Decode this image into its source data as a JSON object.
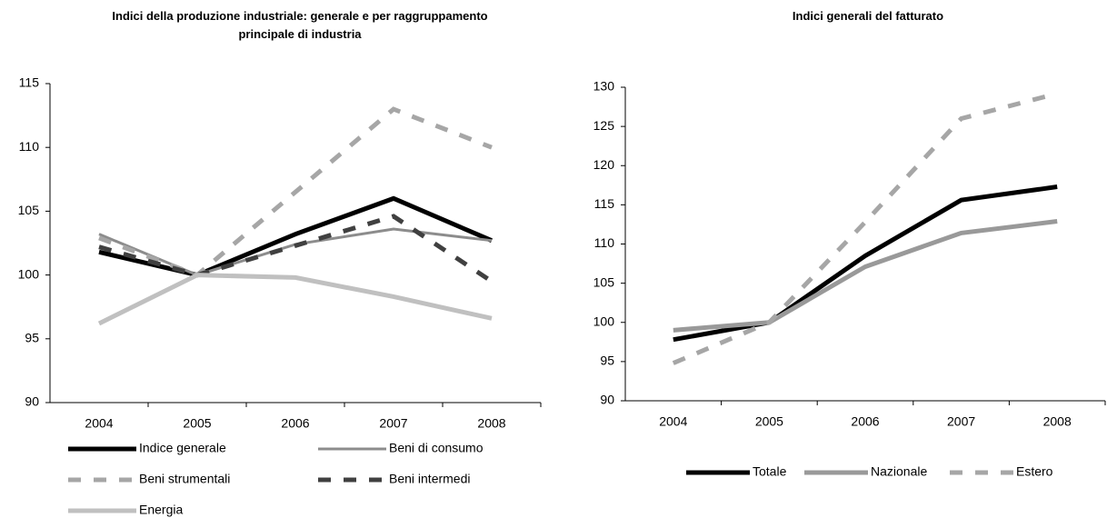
{
  "chart_data": [
    {
      "type": "line",
      "title": "Indici della produzione industriale: generale e per raggruppamento principale di industria",
      "categories": [
        "2004",
        "2005",
        "2006",
        "2007",
        "2008"
      ],
      "ylim": [
        90,
        115
      ],
      "yticks": [
        90,
        95,
        100,
        105,
        110,
        115
      ],
      "legend": "bottom",
      "series": [
        {
          "name": "Indice generale",
          "color": "#000000",
          "line_style": "solid",
          "values": [
            101.8,
            100,
            103.2,
            106.0,
            102.7
          ]
        },
        {
          "name": "Beni di consumo",
          "color": "#8c8c8c",
          "line_style": "thin",
          "values": [
            103.2,
            100,
            102.4,
            103.6,
            102.7
          ]
        },
        {
          "name": "Beni strumentali",
          "color": "#a6a6a6",
          "line_style": "dashed",
          "values": [
            102.9,
            100,
            106.5,
            113.0,
            110.0
          ]
        },
        {
          "name": "Beni intermedi",
          "color": "#404040",
          "line_style": "dashed",
          "values": [
            102.2,
            100,
            102.3,
            104.6,
            99.5
          ]
        },
        {
          "name": "Energia",
          "color": "#c0c0c0",
          "line_style": "solid",
          "values": [
            96.2,
            100,
            99.8,
            98.3,
            96.6
          ]
        }
      ]
    },
    {
      "type": "line",
      "title": "Indici generali del fatturato",
      "categories": [
        "2004",
        "2005",
        "2006",
        "2007",
        "2008"
      ],
      "ylim": [
        90,
        130
      ],
      "yticks": [
        90,
        95,
        100,
        105,
        110,
        115,
        120,
        125,
        130
      ],
      "legend": "bottom",
      "series": [
        {
          "name": "Totale",
          "color": "#000000",
          "line_style": "solid",
          "values": [
            97.8,
            100,
            108.5,
            115.6,
            117.3
          ]
        },
        {
          "name": "Nazionale",
          "color": "#999999",
          "line_style": "solid",
          "values": [
            99.0,
            100,
            107.1,
            111.4,
            112.9
          ]
        },
        {
          "name": "Estero",
          "color": "#a6a6a6",
          "line_style": "dashed",
          "values": [
            94.8,
            100,
            112.8,
            126.0,
            129.2
          ]
        }
      ]
    }
  ]
}
